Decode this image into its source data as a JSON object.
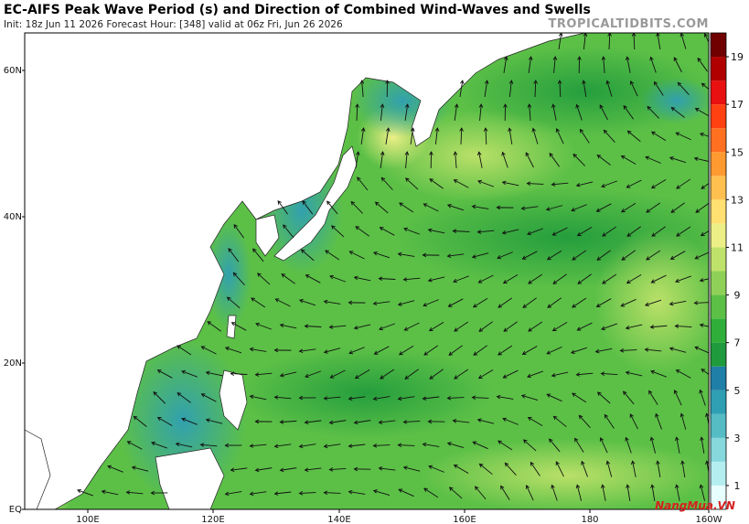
{
  "header": {
    "title": "EC-AIFS Peak Wave Period (s) and Direction of Combined Wind-Waves and Swells",
    "subtitle": "Init: 18z Jun 11 2026   Forecast Hour: [348]   valid at 06z Fri, Jun 26 2026",
    "site": "TROPICALTIDBITS.COM"
  },
  "map": {
    "lat_labels": [
      "60N",
      "40N",
      "20N",
      "EQ"
    ],
    "lon_labels": [
      "100E",
      "120E",
      "140E",
      "160E",
      "180",
      "160W"
    ]
  },
  "colorbar": {
    "range": [
      0,
      20
    ],
    "ticks": [
      1,
      3,
      5,
      7,
      9,
      11,
      13,
      15,
      17,
      19
    ],
    "colors": [
      "#e8ffff",
      "#b4eef0",
      "#86d8dc",
      "#55bcc4",
      "#2f9fb4",
      "#1f7fa6",
      "#1f9a3c",
      "#2fae3a",
      "#5cc047",
      "#8fd158",
      "#bfe26a",
      "#ecef86",
      "#ffe070",
      "#ffc050",
      "#ff9a30",
      "#ff7020",
      "#ff4010",
      "#e81010",
      "#b00000",
      "#700000"
    ]
  },
  "watermark": "NangMua.VN"
}
